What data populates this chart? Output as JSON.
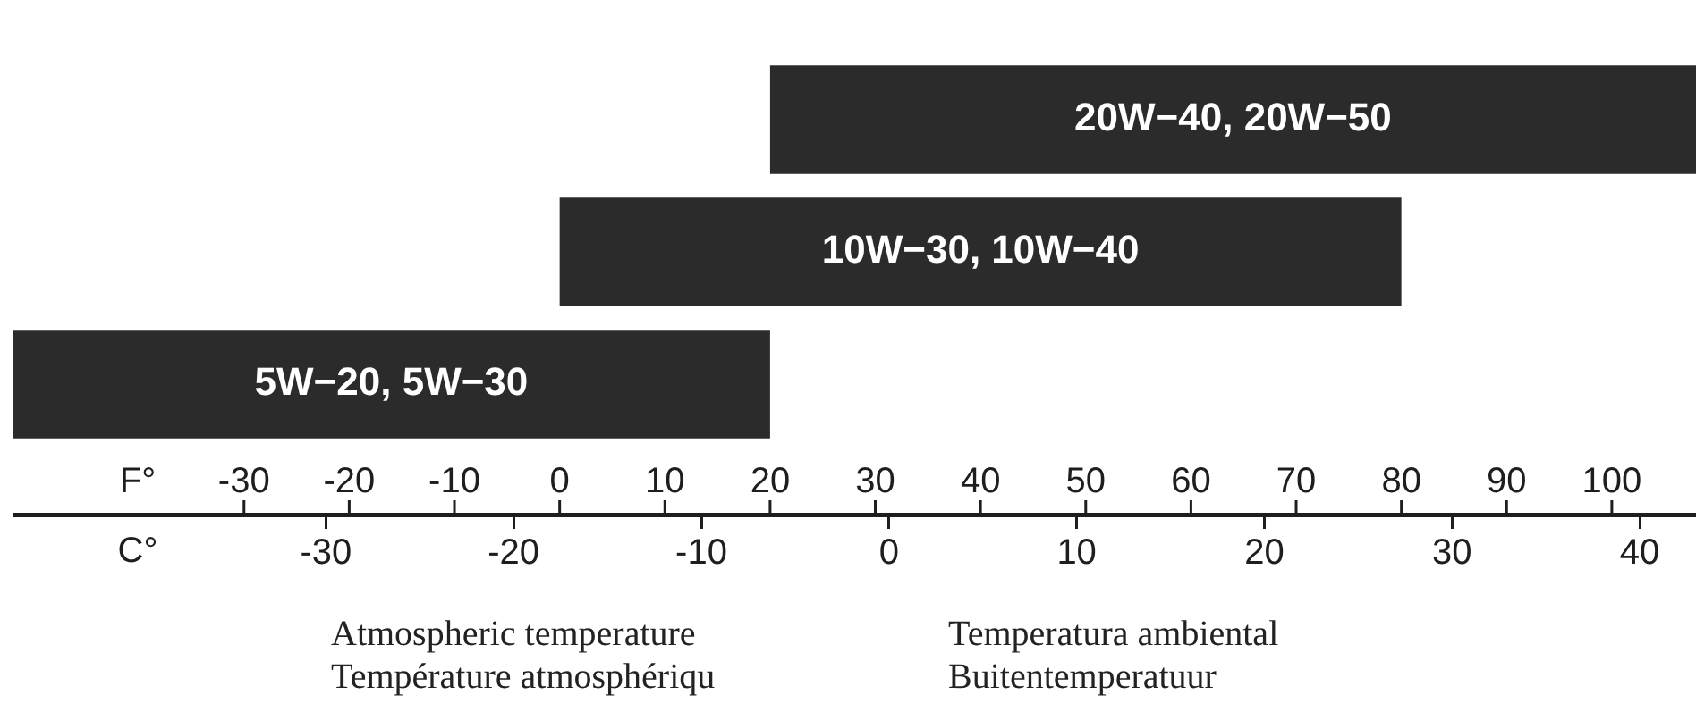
{
  "chart_data": {
    "type": "bar",
    "orientation": "horizontal",
    "categories": [
      "20W−40, 20W−50",
      "10W−30, 10W−40",
      "5W−20, 5W−30"
    ],
    "values": [
      88,
      80,
      72
    ],
    "base": [
      20,
      0,
      -52
    ],
    "color": "#2b2b2b",
    "xlim": [
      -52,
      108
    ],
    "xticks": [
      -30,
      -20,
      -10,
      0,
      10,
      20,
      30,
      40,
      50,
      60,
      70,
      80,
      90,
      100
    ],
    "x2lim": [
      -46.7,
      43
    ],
    "x2ticks": [
      -30,
      -20,
      -10,
      0,
      10,
      20,
      30,
      40
    ],
    "xlabel": "F°",
    "x2label": "C°",
    "annotations": [
      "Atmospheric temperature",
      "Temperatura ambiental",
      "Température atmosphériqu",
      "Buitentemperatuur"
    ]
  }
}
